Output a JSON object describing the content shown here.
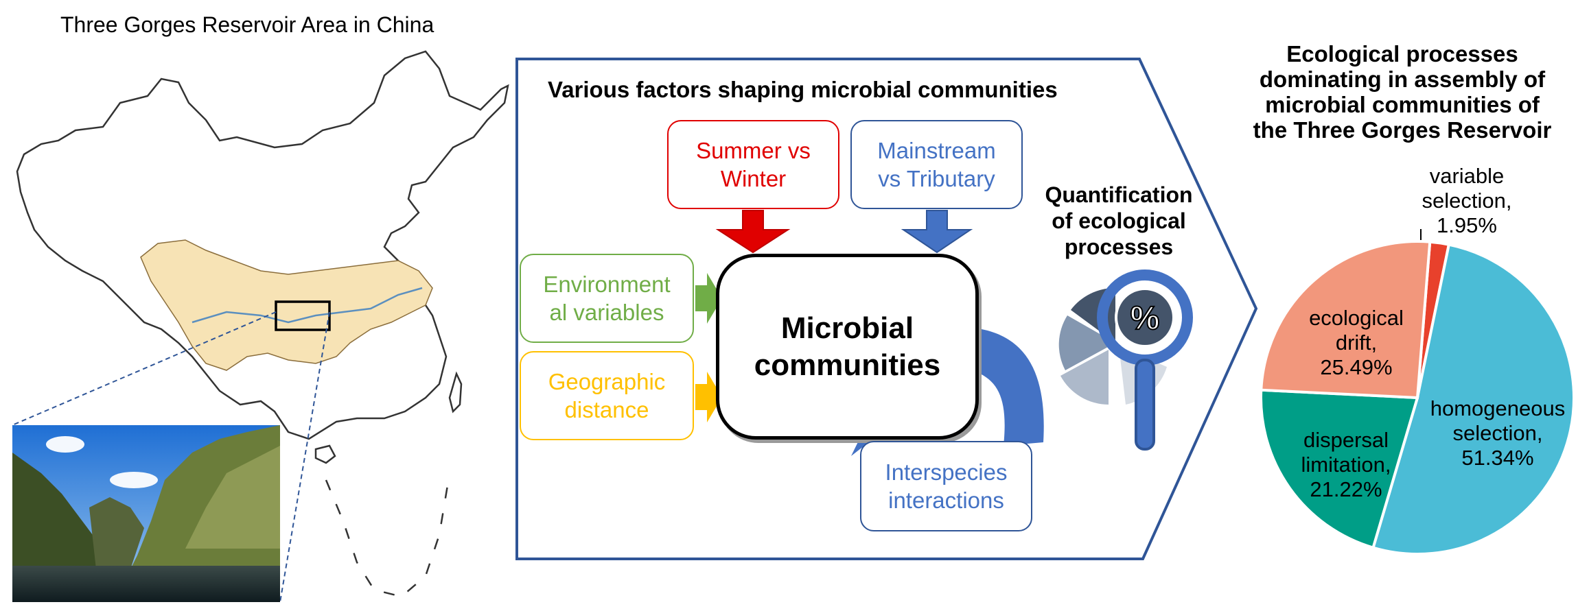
{
  "map": {
    "title": "Three Gorges Reservoir Area in China"
  },
  "factors_panel": {
    "title": "Various factors shaping microbial communities",
    "core": "Microbial\ncommunities",
    "factors": {
      "season": "Summer vs\nWinter",
      "river": "Mainstream\nvs Tributary",
      "environment": "Environment\nal variables",
      "geography": "Geographic\ndistance",
      "interspecies": "Interspecies\ninteractions"
    },
    "quantification": "Quantification\nof ecological\nprocesses",
    "magnifier_symbol": "%"
  },
  "colors": {
    "season": "#e00000",
    "river": "#4472c4",
    "environment": "#70ad47",
    "geography": "#ffc000",
    "panel_border": "#2f5597"
  },
  "chart_data": {
    "type": "pie",
    "title": "Ecological processes\ndominating in assembly of\nmicrobial communities of\nthe Three Gorges Reservoir",
    "slices": [
      {
        "label": "variable selection",
        "value": 1.95,
        "text": "variable selection,\n1.95%",
        "color": "#e8412c"
      },
      {
        "label": "homogeneous selection",
        "value": 51.34,
        "text": "homogeneous\nselection,\n51.34%",
        "color": "#4bbcd6"
      },
      {
        "label": "dispersal limitation",
        "value": 21.22,
        "text": "dispersal\nlimitation,\n21.22%",
        "color": "#009e87"
      },
      {
        "label": "ecological drift",
        "value": 25.49,
        "text": "ecological\ndrift,\n25.49%",
        "color": "#f2977c"
      }
    ]
  }
}
